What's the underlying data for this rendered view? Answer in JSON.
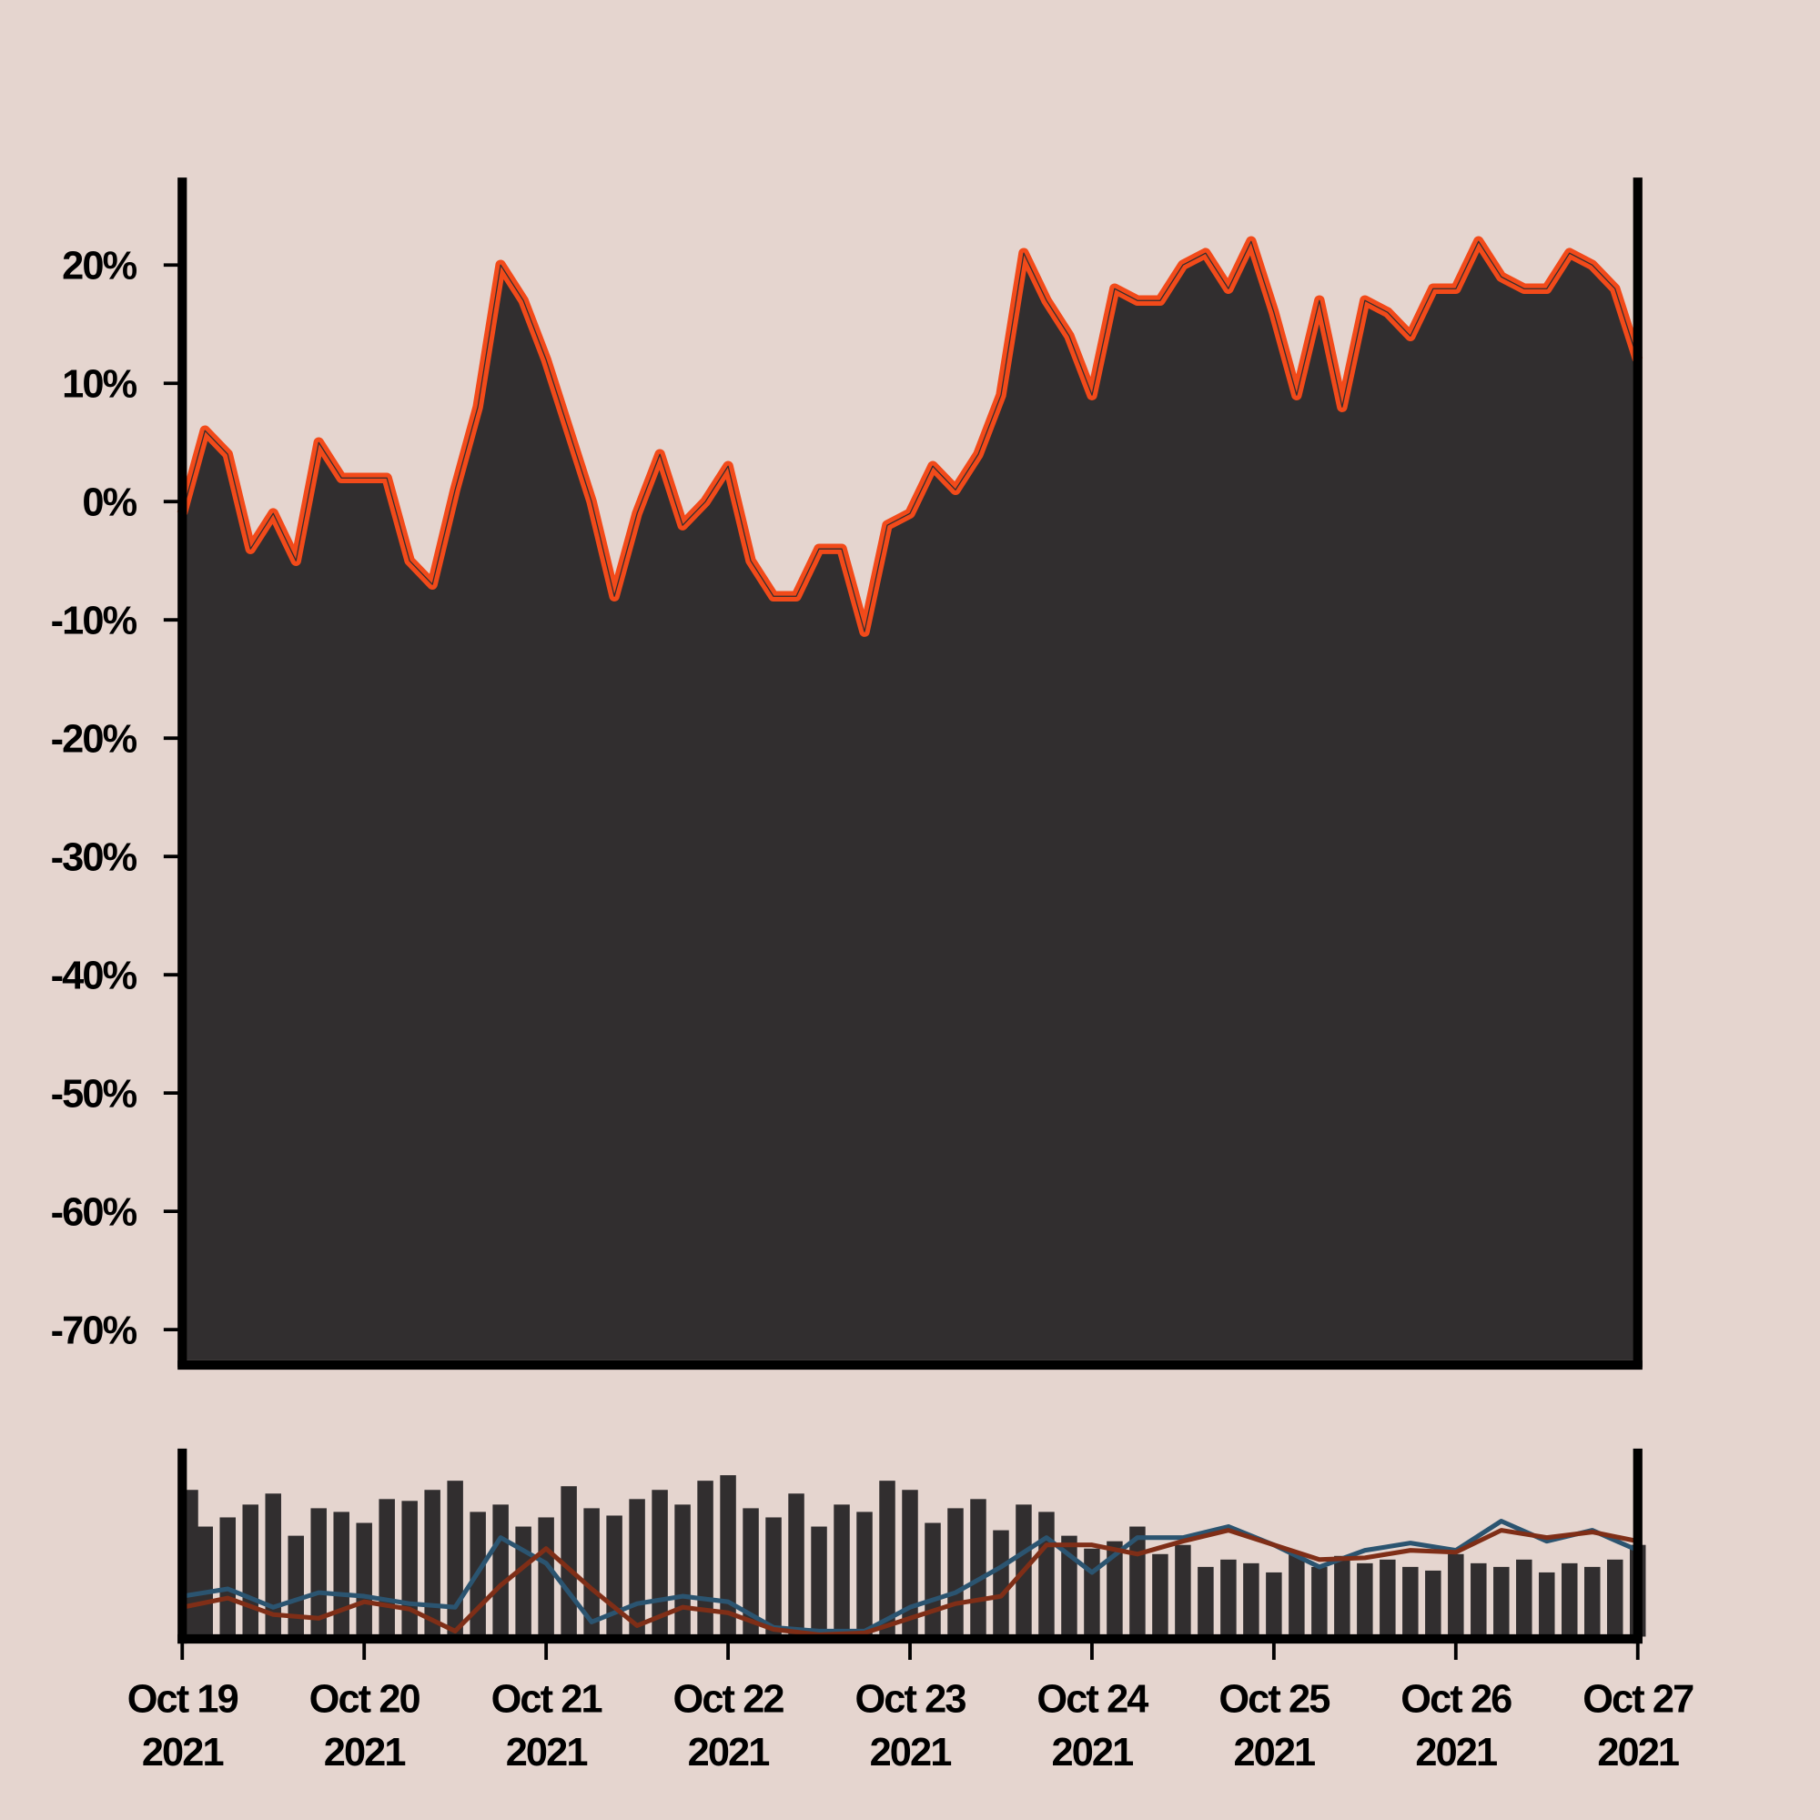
{
  "chart_data": [
    {
      "type": "area",
      "x": [
        0,
        0.125,
        0.25,
        0.375,
        0.5,
        0.625,
        0.75,
        0.875,
        1,
        1.125,
        1.25,
        1.375,
        1.5,
        1.625,
        1.75,
        1.875,
        2,
        2.125,
        2.25,
        2.375,
        2.5,
        2.625,
        2.75,
        2.875,
        3,
        3.125,
        3.25,
        3.375,
        3.5,
        3.625,
        3.75,
        3.875,
        4,
        4.125,
        4.25,
        4.375,
        4.5,
        4.625,
        4.75,
        4.875,
        5,
        5.125,
        5.25,
        5.375,
        5.5,
        5.625,
        5.75,
        5.875,
        6,
        6.125,
        6.25,
        6.375,
        6.5,
        6.625,
        6.75,
        6.875,
        7,
        7.125,
        7.25,
        7.375,
        7.5,
        7.625,
        7.75,
        7.875,
        8
      ],
      "values": [
        -1,
        6,
        4,
        -4,
        -1,
        -5,
        5,
        2,
        2,
        2,
        -5,
        -7,
        1,
        8,
        20,
        17,
        12,
        6,
        0,
        -8,
        -1,
        4,
        -2,
        0,
        3,
        -5,
        -8,
        -8,
        -4,
        -4,
        -11,
        -2,
        -1,
        3,
        1,
        4,
        9,
        21,
        17,
        14,
        9,
        18,
        17,
        17,
        20,
        21,
        18,
        22,
        16,
        9,
        17,
        8,
        17,
        16,
        14,
        18,
        18,
        22,
        19,
        18,
        18,
        21,
        20,
        18,
        12
      ],
      "color": "#f24a1a",
      "fill": "#312e2f",
      "xlim": [
        0,
        8
      ],
      "ylim": [
        -72.6,
        27
      ],
      "yticks": [
        {
          "value": 20,
          "label": "20%"
        },
        {
          "value": 10,
          "label": "10%"
        },
        {
          "value": 0,
          "label": "0%"
        },
        {
          "value": -10,
          "label": "-10%"
        },
        {
          "value": -20,
          "label": "-20%"
        },
        {
          "value": -30,
          "label": "-30%"
        },
        {
          "value": -40,
          "label": "-40%"
        },
        {
          "value": -50,
          "label": "-50%"
        },
        {
          "value": -60,
          "label": "-60%"
        },
        {
          "value": -70,
          "label": "-70%"
        }
      ]
    },
    {
      "type": "bar",
      "x": [
        0,
        0.125,
        0.25,
        0.375,
        0.5,
        0.625,
        0.75,
        0.875,
        1,
        1.125,
        1.25,
        1.375,
        1.5,
        1.625,
        1.75,
        1.875,
        2,
        2.125,
        2.25,
        2.375,
        2.5,
        2.625,
        2.75,
        2.875,
        3,
        3.125,
        3.25,
        3.375,
        3.5,
        3.625,
        3.75,
        3.875,
        4,
        4.125,
        4.25,
        4.375,
        4.5,
        4.625,
        4.75,
        4.875,
        5,
        5.125,
        5.25,
        5.375,
        5.5,
        5.625,
        5.75,
        5.875,
        6,
        6.125,
        6.25,
        6.375,
        6.5,
        6.625,
        6.75,
        6.875,
        7,
        7.125,
        7.25,
        7.375,
        7.5,
        7.625,
        7.75,
        7.875,
        8
      ],
      "values": [
        80,
        60,
        65,
        72,
        78,
        55,
        70,
        68,
        62,
        75,
        74,
        80,
        85,
        68,
        72,
        60,
        65,
        82,
        70,
        66,
        75,
        80,
        72,
        85,
        88,
        70,
        65,
        78,
        60,
        72,
        68,
        85,
        80,
        62,
        70,
        75,
        58,
        72,
        68,
        55,
        48,
        52,
        60,
        45,
        50,
        38,
        42,
        40,
        35,
        45,
        38,
        44,
        40,
        42,
        38,
        36,
        45,
        40,
        38,
        42,
        35,
        40,
        38,
        42,
        50
      ],
      "color": "#312e2f",
      "overlays": [
        {
          "color": "#2b5470",
          "x": [
            0,
            0.25,
            0.5,
            0.75,
            1,
            1.25,
            1.5,
            1.75,
            2,
            2.25,
            2.5,
            2.75,
            3,
            3.25,
            3.5,
            3.75,
            4,
            4.25,
            4.5,
            4.75,
            5,
            5.25,
            5.5,
            5.75,
            6,
            6.25,
            6.5,
            6.75,
            7,
            7.25,
            7.5,
            7.75,
            8
          ],
          "values": [
            22,
            26,
            16,
            24,
            22,
            18,
            16,
            54,
            40,
            8,
            18,
            22,
            19,
            5,
            3,
            3,
            16,
            24,
            38,
            54,
            35,
            54,
            54,
            60,
            50,
            38,
            47,
            51,
            47,
            63,
            52,
            58,
            47
          ]
        },
        {
          "color": "#7f2e17",
          "x": [
            0,
            0.25,
            0.5,
            0.75,
            1,
            1.25,
            1.5,
            1.75,
            2,
            2.25,
            2.5,
            2.75,
            3,
            3.25,
            3.5,
            3.75,
            4,
            4.25,
            4.5,
            4.75,
            5,
            5.25,
            5.5,
            5.75,
            6,
            6.25,
            6.5,
            6.75,
            7,
            7.25,
            7.5,
            7.75,
            8
          ],
          "values": [
            16,
            21,
            12,
            10,
            19,
            15,
            3,
            28,
            48,
            26,
            6,
            16,
            13,
            4,
            1,
            2,
            10,
            18,
            22,
            50,
            50,
            45,
            52,
            58,
            50,
            42,
            43,
            47,
            46,
            58,
            54,
            57,
            52
          ]
        }
      ],
      "xlim": [
        0,
        8
      ],
      "ylim": [
        0,
        100
      ],
      "xticks": [
        {
          "value": 0,
          "label": "Oct 19 2021"
        },
        {
          "value": 1,
          "label": "Oct 20 2021"
        },
        {
          "value": 2,
          "label": "Oct 21 2021"
        },
        {
          "value": 3,
          "label": "Oct 22 2021"
        },
        {
          "value": 4,
          "label": "Oct 23 2021"
        },
        {
          "value": 5,
          "label": "Oct 24 2021"
        },
        {
          "value": 6,
          "label": "Oct 25 2021"
        },
        {
          "value": 7,
          "label": "Oct 26 2021"
        },
        {
          "value": 8,
          "label": "Oct 27 2021"
        }
      ]
    }
  ]
}
